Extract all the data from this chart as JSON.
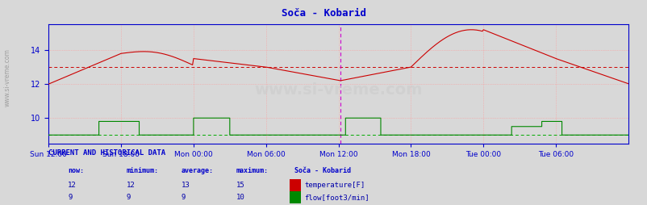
{
  "title": "Soča - Kobarid",
  "title_color": "#0000cc",
  "bg_color": "#d8d8d8",
  "plot_bg_color": "#d8d8d8",
  "watermark": "www.si-vreme.com",
  "x_tick_labels": [
    "Sun 12:00",
    "Sun 18:00",
    "Mon 00:00",
    "Mon 06:00",
    "Mon 12:00",
    "Mon 18:00",
    "Tue 00:00",
    "Tue 06:00"
  ],
  "x_tick_positions": [
    0,
    72,
    144,
    216,
    288,
    360,
    432,
    504
  ],
  "total_points": 577,
  "ylim": [
    8.5,
    15.5
  ],
  "yticks": [
    10,
    12,
    14
  ],
  "grid_color_major": "#ff9999",
  "vline_color": "#cc00cc",
  "vline_pos": 290,
  "avg_line_color_temp": "#cc0000",
  "avg_line_color_flow": "#00aa00",
  "avg_line_temp": 13,
  "avg_line_flow": 9,
  "temp_color": "#cc0000",
  "flow_color": "#008800",
  "axis_color": "#0000cc",
  "tick_color": "#0000cc",
  "table_header_color": "#0000cc",
  "table_data_color": "#0000aa",
  "now_val_temp": 12,
  "min_val_temp": 12,
  "avg_val_temp": 13,
  "max_val_temp": 15,
  "now_val_flow": 9,
  "min_val_flow": 9,
  "avg_val_flow": 9,
  "max_val_flow": 10,
  "legend_title": "Soča - Kobarid",
  "legend_temp_label": "temperature[F]",
  "legend_flow_label": "flow[foot3/min]",
  "sidebar_text": "www.si-vreme.com"
}
